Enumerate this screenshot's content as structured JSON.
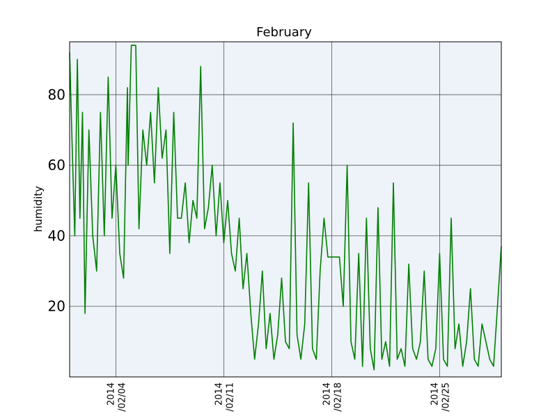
{
  "chart_data": {
    "type": "line",
    "title": "February",
    "ylabel": "humidity",
    "xlabel": "",
    "x_range": [
      "2014-02-01",
      "2014-02-29"
    ],
    "ylim": [
      0,
      95
    ],
    "grid": true,
    "background_color": "#edf3f9",
    "line_color": "#007f00",
    "y_ticks": [
      "20",
      "40",
      "60",
      "80"
    ],
    "x_ticks": [
      {
        "date": "2014-02-04",
        "line1": "2014",
        "line2": "/02/04"
      },
      {
        "date": "2014-02-11",
        "line1": "2014",
        "line2": "/02/11"
      },
      {
        "date": "2014-02-18",
        "line1": "2014",
        "line2": "/02/18"
      },
      {
        "date": "2014-02-25",
        "line1": "2014",
        "line2": "/02/25"
      }
    ],
    "series": [
      {
        "x": [
          "2014-02-01 00:00",
          "2014-02-01 04:00",
          "2014-02-01 08:00",
          "2014-02-01 12:00",
          "2014-02-01 16:00",
          "2014-02-01 20:00",
          "2014-02-02 00:00",
          "2014-02-02 06:00",
          "2014-02-02 12:00",
          "2014-02-02 18:00",
          "2014-02-03 00:00",
          "2014-02-03 06:00",
          "2014-02-03 12:00",
          "2014-02-03 18:00",
          "2014-02-04 00:00",
          "2014-02-04 06:00",
          "2014-02-04 12:00",
          "2014-02-04 18:00",
          "2014-02-04 19:00",
          "2014-02-05 00:00",
          "2014-02-05 06:00",
          "2014-02-05 07:00",
          "2014-02-05 12:00",
          "2014-02-05 18:00",
          "2014-02-06 00:00",
          "2014-02-06 06:00",
          "2014-02-06 12:00",
          "2014-02-06 18:00",
          "2014-02-07 00:00",
          "2014-02-07 06:00",
          "2014-02-07 12:00",
          "2014-02-07 18:00",
          "2014-02-08 00:00",
          "2014-02-08 06:00",
          "2014-02-08 12:00",
          "2014-02-08 18:00",
          "2014-02-09 00:00",
          "2014-02-09 06:00",
          "2014-02-09 12:00",
          "2014-02-09 18:00",
          "2014-02-10 00:00",
          "2014-02-10 06:00",
          "2014-02-10 12:00",
          "2014-02-10 18:00",
          "2014-02-11 00:00",
          "2014-02-11 06:00",
          "2014-02-11 12:00",
          "2014-02-11 18:00",
          "2014-02-12 00:00",
          "2014-02-12 06:00",
          "2014-02-12 12:00",
          "2014-02-12 18:00",
          "2014-02-13 00:00",
          "2014-02-13 06:00",
          "2014-02-13 12:00",
          "2014-02-13 18:00",
          "2014-02-14 00:00",
          "2014-02-14 06:00",
          "2014-02-14 12:00",
          "2014-02-14 18:00",
          "2014-02-15 00:00",
          "2014-02-15 06:00",
          "2014-02-15 12:00",
          "2014-02-15 18:00",
          "2014-02-16 00:00",
          "2014-02-16 06:00",
          "2014-02-16 12:00",
          "2014-02-16 18:00",
          "2014-02-17 00:00",
          "2014-02-17 06:00",
          "2014-02-17 12:00",
          "2014-02-17 18:00",
          "2014-02-18 00:00",
          "2014-02-18 06:00",
          "2014-02-18 12:00",
          "2014-02-18 18:00",
          "2014-02-19 00:00",
          "2014-02-19 06:00",
          "2014-02-19 12:00",
          "2014-02-19 18:00",
          "2014-02-20 00:00",
          "2014-02-20 06:00",
          "2014-02-20 12:00",
          "2014-02-20 18:00",
          "2014-02-21 00:00",
          "2014-02-21 06:00",
          "2014-02-21 12:00",
          "2014-02-21 18:00",
          "2014-02-22 00:00",
          "2014-02-22 06:00",
          "2014-02-22 12:00",
          "2014-02-22 18:00",
          "2014-02-23 00:00",
          "2014-02-23 06:00",
          "2014-02-23 12:00",
          "2014-02-23 18:00",
          "2014-02-24 00:00",
          "2014-02-24 06:00",
          "2014-02-24 12:00",
          "2014-02-24 18:00",
          "2014-02-25 00:00",
          "2014-02-25 06:00",
          "2014-02-25 12:00",
          "2014-02-25 18:00",
          "2014-02-26 00:00",
          "2014-02-26 06:00",
          "2014-02-26 12:00",
          "2014-02-26 18:00",
          "2014-02-27 00:00",
          "2014-02-27 06:00",
          "2014-02-27 12:00",
          "2014-02-27 18:00",
          "2014-02-28 00:00",
          "2014-02-28 06:00",
          "2014-02-28 12:00",
          "2014-02-28 18:00",
          "2014-02-29 00:00"
        ],
        "values": [
          92,
          65,
          40,
          90,
          45,
          75,
          18,
          70,
          40,
          30,
          75,
          40,
          85,
          45,
          60,
          35,
          28,
          82,
          60,
          94,
          94,
          94,
          42,
          70,
          60,
          75,
          55,
          82,
          62,
          70,
          35,
          75,
          45,
          45,
          55,
          38,
          50,
          45,
          88,
          42,
          48,
          60,
          40,
          55,
          38,
          50,
          35,
          30,
          45,
          25,
          35,
          18,
          5,
          15,
          30,
          8,
          18,
          5,
          12,
          28,
          10,
          8,
          72,
          12,
          5,
          15,
          55,
          8,
          5,
          30,
          45,
          34,
          34,
          34,
          34,
          20,
          60,
          10,
          5,
          35,
          3,
          45,
          8,
          2,
          48,
          5,
          10,
          3,
          55,
          5,
          8,
          3,
          32,
          8,
          5,
          10,
          30,
          5,
          3,
          8,
          35,
          5,
          3,
          45,
          8,
          15,
          3,
          10,
          25,
          5,
          3,
          15,
          10,
          5,
          3,
          20,
          37
        ]
      }
    ]
  }
}
